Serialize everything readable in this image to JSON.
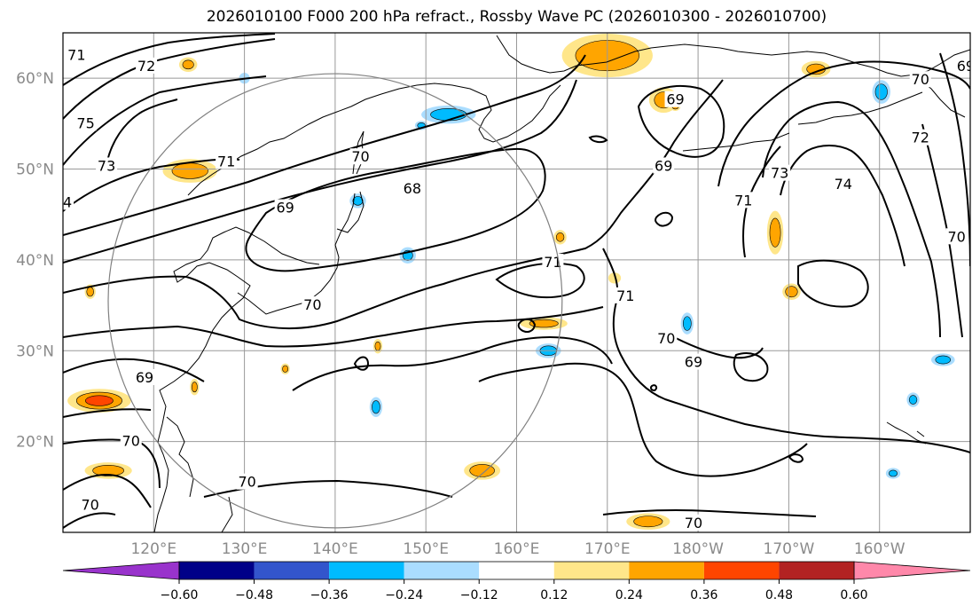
{
  "title": "2026010100 F000 200 hPa refract., Rossby Wave PC (2026010300 - 2026010700)",
  "map": {
    "lon_range_east": [
      110,
      210
    ],
    "lat_range": [
      10,
      65
    ],
    "lat_ticks": [
      {
        "lat": 60,
        "label": "60°N"
      },
      {
        "lat": 50,
        "label": "50°N"
      },
      {
        "lat": 40,
        "label": "40°N"
      },
      {
        "lat": 30,
        "label": "30°N"
      },
      {
        "lat": 20,
        "label": "20°N"
      }
    ],
    "lon_ticks": [
      {
        "lon": 120,
        "label": "120°E"
      },
      {
        "lon": 130,
        "label": "130°E"
      },
      {
        "lon": 140,
        "label": "140°E"
      },
      {
        "lon": 150,
        "label": "150°E"
      },
      {
        "lon": 160,
        "label": "160°E"
      },
      {
        "lon": 170,
        "label": "170°E"
      },
      {
        "lon": 180,
        "label": "180°W"
      },
      {
        "lon": 190,
        "label": "170°W"
      },
      {
        "lon": 200,
        "label": "160°W"
      }
    ],
    "grid": true,
    "circle": {
      "center_lon": 140,
      "center_lat": 35.5,
      "radius_deg_lat": 25
    }
  },
  "contours": {
    "field": "200 hPa refractivity",
    "labels": [
      {
        "text": "71",
        "lon": 111.5,
        "lat": 62.5
      },
      {
        "text": "72",
        "lon": 119.2,
        "lat": 61.3
      },
      {
        "text": "75",
        "lon": 112.5,
        "lat": 55.0
      },
      {
        "text": "73",
        "lon": 114.8,
        "lat": 50.3
      },
      {
        "text": "4",
        "lon": 110.5,
        "lat": 46.3
      },
      {
        "text": "71",
        "lon": 128.0,
        "lat": 50.8
      },
      {
        "text": "70",
        "lon": 142.8,
        "lat": 51.3
      },
      {
        "text": "69",
        "lon": 134.5,
        "lat": 45.7
      },
      {
        "text": "68",
        "lon": 148.5,
        "lat": 47.8
      },
      {
        "text": "69",
        "lon": 177.5,
        "lat": 57.6
      },
      {
        "text": "69",
        "lon": 176.2,
        "lat": 50.3
      },
      {
        "text": "71",
        "lon": 164.0,
        "lat": 39.7
      },
      {
        "text": "71",
        "lon": 172.0,
        "lat": 36.0
      },
      {
        "text": "70",
        "lon": 137.5,
        "lat": 35.0
      },
      {
        "text": "70",
        "lon": 176.5,
        "lat": 31.3
      },
      {
        "text": "69",
        "lon": 179.5,
        "lat": 28.7
      },
      {
        "text": "69",
        "lon": 119.0,
        "lat": 27.0
      },
      {
        "text": "70",
        "lon": 117.5,
        "lat": 20.0
      },
      {
        "text": "70",
        "lon": 130.3,
        "lat": 15.5
      },
      {
        "text": "70",
        "lon": 113.0,
        "lat": 13.0
      },
      {
        "text": "70",
        "lon": 179.5,
        "lat": 11.0
      },
      {
        "text": "71",
        "lon": 185.0,
        "lat": 46.5
      },
      {
        "text": "73",
        "lon": 189.0,
        "lat": 49.5
      },
      {
        "text": "74",
        "lon": 196.0,
        "lat": 48.3
      },
      {
        "text": "72",
        "lon": 204.5,
        "lat": 53.4
      },
      {
        "text": "70",
        "lon": 204.5,
        "lat": 59.8
      },
      {
        "text": "69",
        "lon": 209.5,
        "lat": 61.3
      },
      {
        "text": "70",
        "lon": 208.5,
        "lat": 42.5
      }
    ]
  },
  "shading": {
    "field": "Rossby Wave PC",
    "blobs": [
      {
        "lon": 170.0,
        "lat": 62.5,
        "rlon": 5.0,
        "rlat": 2.4,
        "v": 0.34
      },
      {
        "lon": 124.0,
        "lat": 49.8,
        "rlon": 3.0,
        "rlat": 1.3,
        "v": 0.3
      },
      {
        "lon": 114.0,
        "lat": 24.5,
        "rlon": 3.5,
        "rlat": 1.3,
        "v": 0.36
      },
      {
        "lon": 115.0,
        "lat": 16.8,
        "rlon": 2.6,
        "rlat": 0.9,
        "v": 0.3
      },
      {
        "lon": 156.2,
        "lat": 16.8,
        "rlon": 2.0,
        "rlat": 1.0,
        "v": 0.32
      },
      {
        "lon": 174.5,
        "lat": 11.2,
        "rlon": 2.4,
        "rlat": 0.9,
        "v": 0.3
      },
      {
        "lon": 163.0,
        "lat": 33.0,
        "rlon": 2.6,
        "rlat": 0.7,
        "v": 0.26
      },
      {
        "lon": 176.2,
        "lat": 57.6,
        "rlon": 1.6,
        "rlat": 1.4,
        "v": 0.28
      },
      {
        "lon": 193.0,
        "lat": 61.0,
        "rlon": 1.6,
        "rlat": 0.9,
        "v": 0.28
      },
      {
        "lon": 188.5,
        "lat": 43.0,
        "rlon": 0.9,
        "rlat": 2.4,
        "v": 0.3
      },
      {
        "lon": 190.3,
        "lat": 36.5,
        "rlon": 1.0,
        "rlat": 0.9,
        "v": 0.3
      },
      {
        "lon": 123.8,
        "lat": 61.5,
        "rlon": 1.0,
        "rlat": 0.8,
        "v": 0.26
      },
      {
        "lon": 152.5,
        "lat": 56.0,
        "rlon": 3.0,
        "rlat": 1.0,
        "v": -0.3
      },
      {
        "lon": 200.2,
        "lat": 58.5,
        "rlon": 1.0,
        "rlat": 1.3,
        "v": -0.3
      },
      {
        "lon": 163.5,
        "lat": 30.0,
        "rlon": 1.4,
        "rlat": 0.8,
        "v": -0.3
      },
      {
        "lon": 148.0,
        "lat": 40.5,
        "rlon": 0.9,
        "rlat": 0.9,
        "v": -0.26
      },
      {
        "lon": 142.5,
        "lat": 46.5,
        "rlon": 0.9,
        "rlat": 0.8,
        "v": -0.26
      },
      {
        "lon": 144.5,
        "lat": 23.8,
        "rlon": 0.7,
        "rlat": 1.1,
        "v": -0.28
      },
      {
        "lon": 178.8,
        "lat": 33.0,
        "rlon": 0.7,
        "rlat": 1.2,
        "v": -0.28
      },
      {
        "lon": 207.0,
        "lat": 29.0,
        "rlon": 1.3,
        "rlat": 0.7,
        "v": -0.28
      },
      {
        "lon": 203.7,
        "lat": 24.6,
        "rlon": 0.7,
        "rlat": 0.8,
        "v": -0.26
      },
      {
        "lon": 201.5,
        "lat": 16.5,
        "rlon": 0.8,
        "rlat": 0.6,
        "v": -0.24
      },
      {
        "lon": 130.0,
        "lat": 60.0,
        "rlon": 0.6,
        "rlat": 0.6,
        "v": -0.22
      },
      {
        "lon": 170.8,
        "lat": 38.0,
        "rlon": 0.7,
        "rlat": 0.6,
        "v": 0.22
      },
      {
        "lon": 113.0,
        "lat": 36.5,
        "rlon": 0.6,
        "rlat": 0.8,
        "v": 0.28
      },
      {
        "lon": 124.5,
        "lat": 26.0,
        "rlon": 0.5,
        "rlat": 0.9,
        "v": 0.26
      },
      {
        "lon": 134.5,
        "lat": 28.0,
        "rlon": 0.5,
        "rlat": 0.6,
        "v": 0.26
      },
      {
        "lon": 144.7,
        "lat": 30.5,
        "rlon": 0.5,
        "rlat": 0.8,
        "v": 0.26
      },
      {
        "lon": 164.8,
        "lat": 42.5,
        "rlon": 0.7,
        "rlat": 0.8,
        "v": 0.26
      },
      {
        "lon": 177.5,
        "lat": 57.0,
        "rlon": 0.6,
        "rlat": 0.6,
        "v": 0.3
      },
      {
        "lon": 149.5,
        "lat": 54.8,
        "rlon": 0.7,
        "rlat": 0.5,
        "v": -0.26
      }
    ]
  },
  "colorbar": {
    "ticks": [
      "−0.60",
      "−0.48",
      "−0.36",
      "−0.24",
      "−0.12",
      "0.12",
      "0.24",
      "0.36",
      "0.48",
      "0.60"
    ],
    "under_color": "#9933cc",
    "over_color": "#ff88aa",
    "colors": [
      "#000088",
      "#3355cc",
      "#00bbff",
      "#aaddff",
      "#ffffff",
      "#ffe68a",
      "#ffa500",
      "#ff4500",
      "#b22222"
    ]
  }
}
